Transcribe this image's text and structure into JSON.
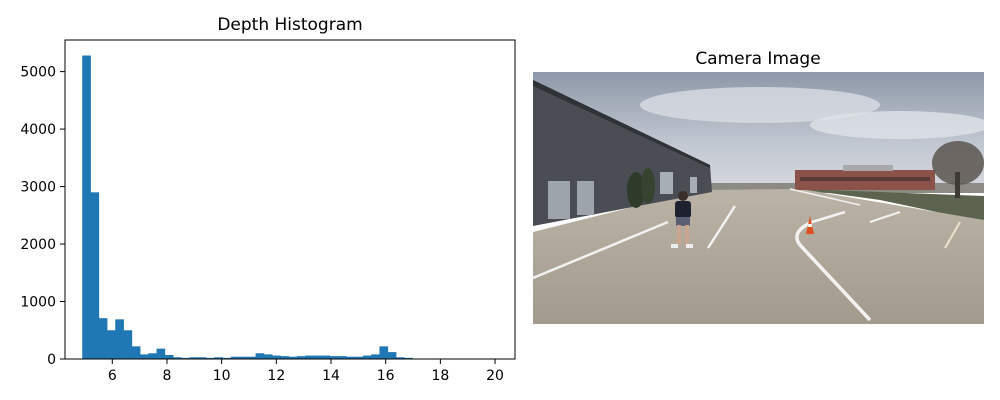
{
  "chart_data": [
    {
      "type": "bar",
      "title": "Depth Histogram",
      "xlabel": "",
      "ylabel": "",
      "xlim": [
        4.27,
        20.73
      ],
      "ylim": [
        0,
        5550
      ],
      "xticks": [
        6,
        8,
        10,
        12,
        14,
        16,
        18,
        20
      ],
      "yticks": [
        0,
        1000,
        2000,
        3000,
        4000,
        5000
      ],
      "bin_start": 4.9,
      "bin_width": 0.302,
      "bar_color": "#1f77b4",
      "values": [
        5280,
        2900,
        710,
        500,
        690,
        500,
        220,
        80,
        100,
        180,
        70,
        30,
        20,
        30,
        30,
        20,
        30,
        20,
        40,
        40,
        40,
        100,
        80,
        60,
        50,
        40,
        50,
        60,
        60,
        60,
        50,
        50,
        40,
        40,
        60,
        80,
        220,
        120,
        30,
        20
      ]
    },
    {
      "type": "image",
      "title": "Camera Image"
    }
  ],
  "colors": {
    "bar": "#1f77b4",
    "sky": "#b8c0cc",
    "pavement": "#aea698",
    "building": "#4a4d53",
    "brick": "#8a5248"
  }
}
